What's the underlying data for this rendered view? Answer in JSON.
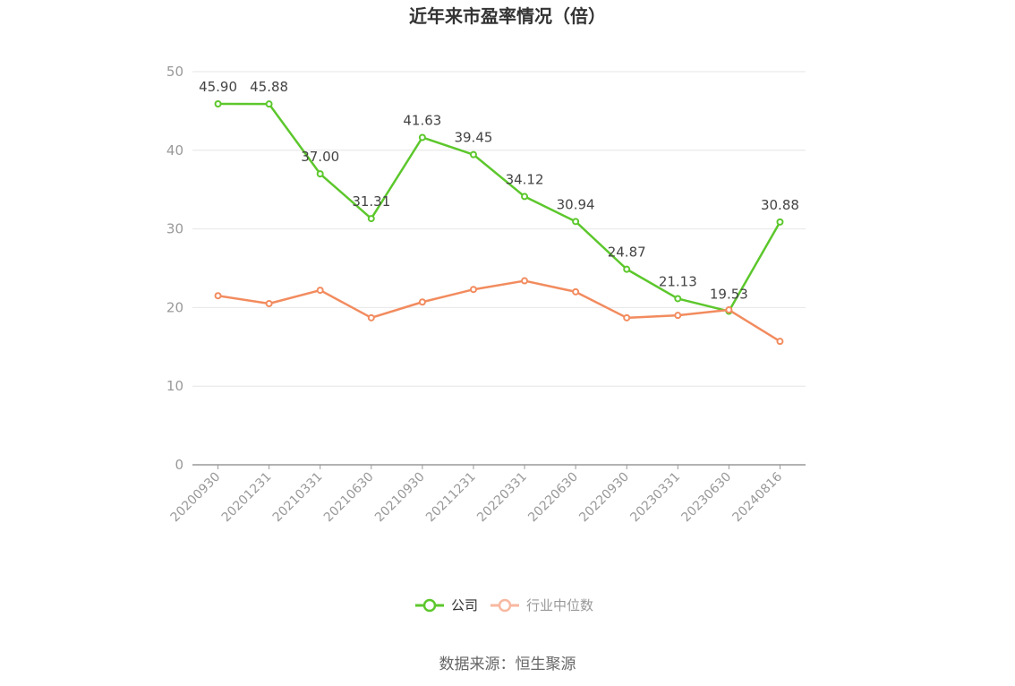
{
  "title": "近年来市盈率情况（倍）",
  "source": "数据来源：恒生聚源",
  "chart_data": {
    "type": "line",
    "title": "近年来市盈率情况（倍）",
    "categories": [
      "20200930",
      "20201231",
      "20210331",
      "20210630",
      "20210930",
      "20211231",
      "20220331",
      "20220630",
      "20220930",
      "20230331",
      "20230630",
      "20240816"
    ],
    "ylim": [
      0,
      50
    ],
    "yticks": [
      0,
      10,
      20,
      30,
      40,
      50
    ],
    "grid": true,
    "legend_position": "bottom",
    "series": [
      {
        "name": "公司",
        "color": "#5cc72c",
        "show_labels": true,
        "values": [
          45.9,
          45.88,
          37.0,
          31.31,
          41.63,
          39.45,
          34.12,
          30.94,
          24.87,
          21.13,
          19.53,
          30.88
        ],
        "labels": [
          "45.90",
          "45.88",
          "37.00",
          "31.31",
          "41.63",
          "39.45",
          "34.12",
          "30.94",
          "24.87",
          "21.13",
          "19.53",
          "30.88"
        ]
      },
      {
        "name": "行业中位数",
        "color": "#f28b5e",
        "legend_color": "#f7b8a0",
        "show_labels": false,
        "values": [
          21.5,
          20.5,
          22.2,
          18.7,
          20.7,
          22.3,
          23.4,
          22.0,
          18.7,
          19.0,
          19.7,
          15.7
        ]
      }
    ]
  }
}
